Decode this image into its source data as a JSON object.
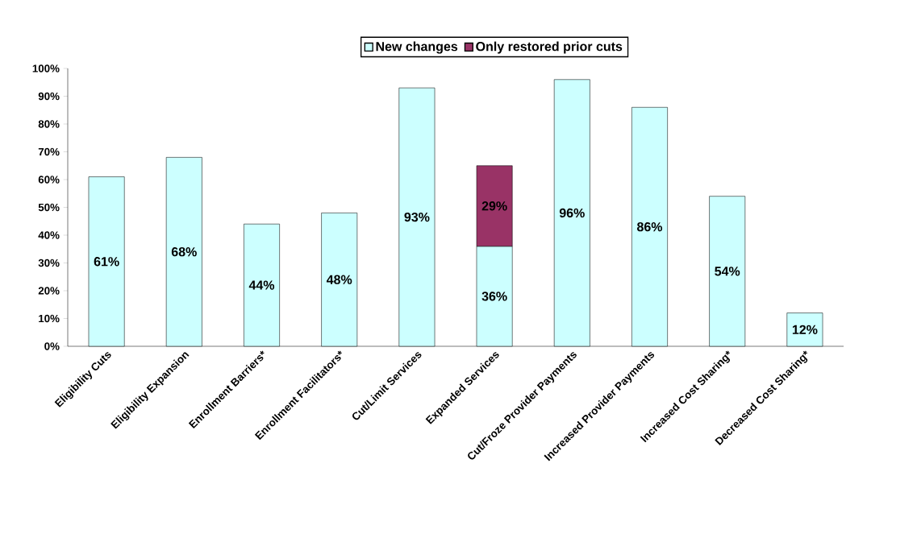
{
  "chart_data": {
    "type": "bar",
    "stacked": true,
    "categories": [
      "Eligibility Cuts",
      "Eligibility Expansion",
      "Enrollment Barriers*",
      "Enrollment Facilitators*",
      "Cut/Limit Services",
      "Expanded Services",
      "Cut/Froze Provider Payments",
      "Increased Provider Payments",
      "Increased Cost Sharing*",
      "Decreased Cost Sharing*"
    ],
    "series": [
      {
        "name": "New changes",
        "color": "#ccffff",
        "values": [
          61,
          68,
          44,
          48,
          93,
          36,
          96,
          86,
          54,
          12
        ],
        "value_labels": [
          "61%",
          "68%",
          "44%",
          "48%",
          "93%",
          "36%",
          "96%",
          "86%",
          "54%",
          "12%"
        ]
      },
      {
        "name": "Only restored prior cuts",
        "color": "#993366",
        "values": [
          null,
          null,
          null,
          null,
          null,
          29,
          null,
          null,
          null,
          null
        ],
        "value_labels": [
          null,
          null,
          null,
          null,
          null,
          "29%",
          null,
          null,
          null,
          null
        ]
      }
    ],
    "ylim": [
      0,
      100
    ],
    "yticks": [
      {
        "value": 0,
        "label": "0%"
      },
      {
        "value": 10,
        "label": "10%"
      },
      {
        "value": 20,
        "label": "20%"
      },
      {
        "value": 30,
        "label": "30%"
      },
      {
        "value": 40,
        "label": "40%"
      },
      {
        "value": 50,
        "label": "50%"
      },
      {
        "value": 60,
        "label": "60%"
      },
      {
        "value": 70,
        "label": "70%"
      },
      {
        "value": 80,
        "label": "80%"
      },
      {
        "value": 90,
        "label": "90%"
      },
      {
        "value": 100,
        "label": "100%"
      }
    ],
    "legend": "top",
    "grid": false
  }
}
